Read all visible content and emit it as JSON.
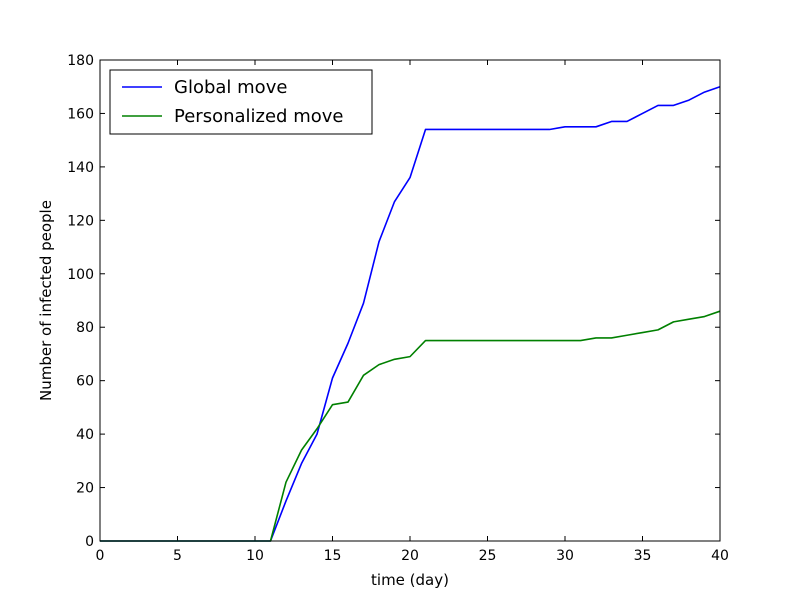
{
  "chart_data": {
    "type": "line",
    "title": "",
    "xlabel": "time (day)",
    "ylabel": "Number of infected people",
    "xlim": [
      0,
      40
    ],
    "ylim": [
      0,
      180
    ],
    "xticks": [
      0,
      5,
      10,
      15,
      20,
      25,
      30,
      35,
      40
    ],
    "yticks": [
      0,
      20,
      40,
      60,
      80,
      100,
      120,
      140,
      160,
      180
    ],
    "grid": false,
    "legend_position": "top-left",
    "x": [
      0,
      1,
      2,
      3,
      4,
      5,
      6,
      7,
      8,
      9,
      10,
      11,
      12,
      13,
      14,
      15,
      16,
      17,
      18,
      19,
      20,
      21,
      22,
      23,
      24,
      25,
      26,
      27,
      28,
      29,
      30,
      31,
      32,
      33,
      34,
      35,
      36,
      37,
      38,
      39,
      40
    ],
    "series": [
      {
        "name": "Global move",
        "color": "#0000ff",
        "values": [
          0,
          0,
          0,
          0,
          0,
          0,
          0,
          0,
          0,
          0,
          0,
          0,
          15,
          29,
          40,
          61,
          74,
          89,
          112,
          127,
          136,
          154,
          154,
          154,
          154,
          154,
          154,
          154,
          154,
          154,
          155,
          155,
          155,
          157,
          157,
          160,
          163,
          163,
          165,
          168,
          170
        ]
      },
      {
        "name": "Personalized move",
        "color": "#008000",
        "values": [
          0,
          0,
          0,
          0,
          0,
          0,
          0,
          0,
          0,
          0,
          0,
          0,
          22,
          34,
          42,
          51,
          52,
          62,
          66,
          68,
          69,
          75,
          75,
          75,
          75,
          75,
          75,
          75,
          75,
          75,
          75,
          75,
          76,
          76,
          77,
          78,
          79,
          82,
          83,
          84,
          86
        ]
      }
    ]
  }
}
